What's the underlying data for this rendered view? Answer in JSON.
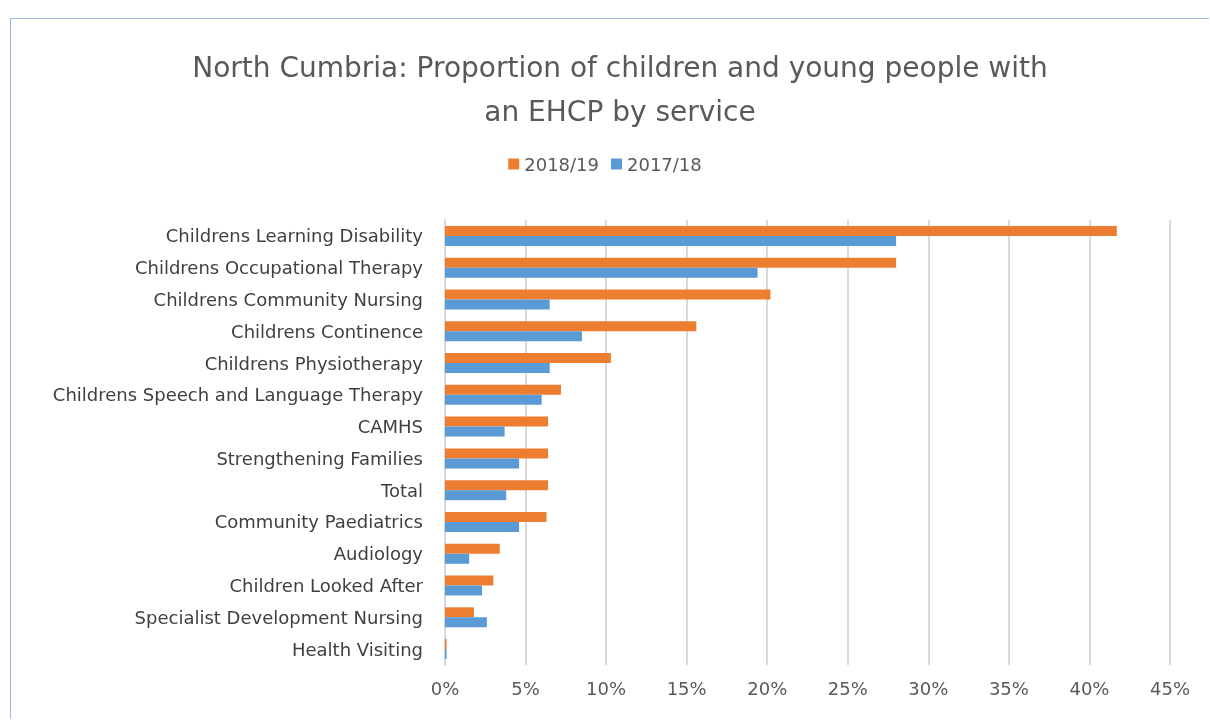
{
  "chart_data": {
    "type": "bar",
    "orientation": "horizontal",
    "title": "North Cumbria: Proportion of children and young people with\nan EHCP by service",
    "categories": [
      "Childrens Learning Disability",
      "Childrens Occupational Therapy",
      "Childrens Community Nursing",
      "Childrens Continence",
      "Childrens Physiotherapy",
      "Childrens Speech and Language Therapy",
      "CAMHS",
      "Strengthening Families",
      "Total",
      "Community Paediatrics",
      "Audiology",
      "Children Looked After",
      "Specialist Development Nursing",
      "Health Visiting"
    ],
    "series": [
      {
        "name": "2018/19",
        "color": "#ed7d31",
        "values": [
          41.7,
          28.0,
          20.2,
          15.6,
          10.3,
          7.2,
          6.4,
          6.4,
          6.4,
          6.3,
          3.4,
          3.0,
          1.8,
          0.1
        ]
      },
      {
        "name": "2017/18",
        "color": "#5b9bd5",
        "values": [
          28.0,
          19.4,
          6.5,
          8.5,
          6.5,
          6.0,
          3.7,
          4.6,
          3.8,
          4.6,
          1.5,
          2.3,
          2.6,
          0.1
        ]
      }
    ],
    "xlim": [
      0,
      45
    ],
    "xticks": [
      {
        "value": 0,
        "label": "0%"
      },
      {
        "value": 5,
        "label": "5%"
      },
      {
        "value": 10,
        "label": "10%"
      },
      {
        "value": 15,
        "label": "15%"
      },
      {
        "value": 20,
        "label": "20%"
      },
      {
        "value": 25,
        "label": "25%"
      },
      {
        "value": 30,
        "label": "30%"
      },
      {
        "value": 35,
        "label": "35%"
      },
      {
        "value": 40,
        "label": "40%"
      },
      {
        "value": 45,
        "label": "45%"
      }
    ],
    "grid": "x",
    "legend": "top"
  }
}
